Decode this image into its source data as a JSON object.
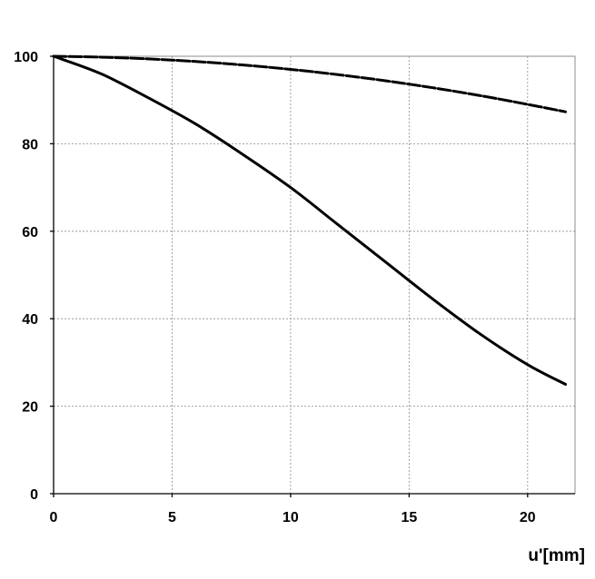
{
  "chart_data": {
    "type": "line",
    "title": "",
    "xlabel": "u'[mm]",
    "ylabel": "",
    "xlim": [
      0,
      22
    ],
    "ylim": [
      0,
      100
    ],
    "xticks": [
      0,
      5,
      10,
      15,
      20
    ],
    "yticks": [
      0,
      20,
      40,
      60,
      80,
      100
    ],
    "grid": true,
    "legend": "none",
    "series": [
      {
        "style": "dashed",
        "color": "#000000",
        "x": [
          0,
          2,
          4,
          6,
          8,
          10,
          12,
          14,
          16,
          18,
          20,
          21.6
        ],
        "y": [
          100,
          99.8,
          99.4,
          98.8,
          98.0,
          97.0,
          95.8,
          94.4,
          92.8,
          91.0,
          89.0,
          87.3
        ]
      },
      {
        "style": "solid",
        "color": "#000000",
        "x": [
          0,
          2,
          4,
          6,
          8,
          10,
          12,
          14,
          16,
          18,
          20,
          21.6
        ],
        "y": [
          100,
          96.0,
          90.5,
          84.5,
          77.5,
          70.0,
          61.5,
          53.0,
          44.5,
          36.5,
          29.5,
          25.0
        ]
      }
    ]
  }
}
